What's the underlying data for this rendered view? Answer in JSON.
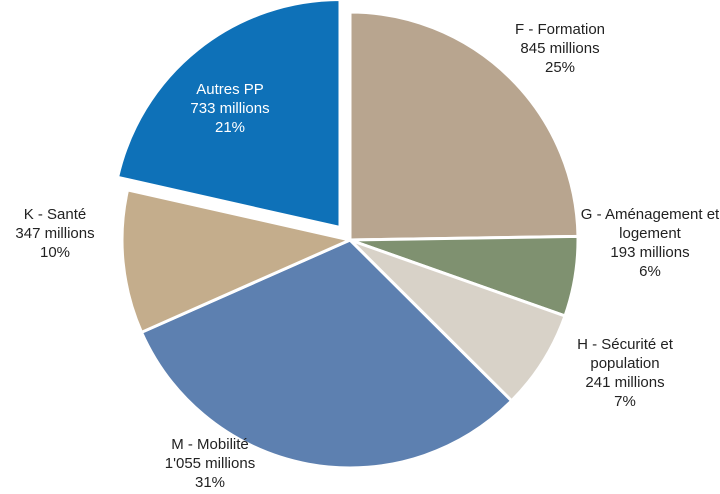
{
  "chart_data": {
    "type": "pie",
    "categories": [
      "F - Formation",
      "G - Aménagement et logement",
      "H - Sécurité et population",
      "M - Mobilité",
      "K - Santé",
      "Autres PP"
    ],
    "values": [
      845,
      193,
      241,
      1055,
      347,
      733
    ],
    "value_labels": [
      "845 millions",
      "193 millions",
      "241 millions",
      "1'055 millions",
      "347 millions",
      "733 millions"
    ],
    "percent_labels": [
      "25%",
      "6%",
      "7%",
      "31%",
      "10%",
      "21%"
    ],
    "colors": [
      "#b8a58f",
      "#7f9170",
      "#d8d2c8",
      "#5d80b0",
      "#c4ad8c",
      "#0e71b8"
    ],
    "exploded": "Autres PP"
  }
}
